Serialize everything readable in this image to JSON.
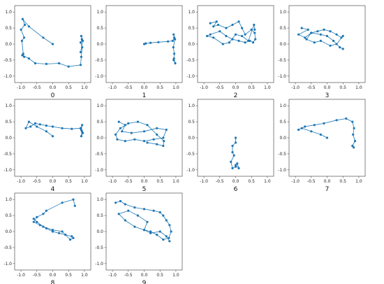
{
  "chart_data": {
    "type": "line",
    "marker_color": "#1f77b4",
    "xlim": [
      -1.2,
      1.2
    ],
    "ylim": [
      -1.2,
      1.2
    ],
    "xticks": [
      "-1.0",
      "-0.5",
      "0.0",
      "0.5",
      "1.0"
    ],
    "yticks": [
      "1.0",
      "0.5",
      "0.0",
      "-0.5",
      "-1.0"
    ],
    "grid": false,
    "panels": [
      {
        "title": "0",
        "x": [
          0.0,
          -0.3,
          -0.75,
          -0.95,
          -0.88,
          -1.0,
          -0.9,
          -0.97,
          -0.93,
          -0.9,
          -0.96,
          -0.75,
          -0.55,
          -0.2,
          0.2,
          0.5,
          0.88,
          0.9,
          0.93,
          0.88,
          0.92,
          0.9,
          0.95,
          0.88
        ],
        "y": [
          0.0,
          0.2,
          0.55,
          0.78,
          0.6,
          0.45,
          0.2,
          0.1,
          -0.3,
          -0.4,
          -0.35,
          -0.45,
          -0.6,
          -0.62,
          -0.6,
          -0.7,
          -0.65,
          -0.4,
          -0.1,
          0.05,
          0.15,
          0.25,
          0.1,
          -0.25
        ]
      },
      {
        "title": "1",
        "x": [
          0.0,
          0.05,
          0.2,
          0.45,
          0.75,
          0.9,
          0.95,
          0.93,
          0.97,
          0.92,
          0.95,
          0.93,
          0.98,
          0.94
        ],
        "y": [
          0.0,
          0.02,
          0.04,
          0.06,
          0.08,
          0.1,
          0.2,
          0.3,
          0.15,
          -0.1,
          -0.3,
          -0.5,
          -0.6,
          -0.45
        ]
      },
      {
        "title": "2",
        "x": [
          -0.8,
          -0.6,
          -0.7,
          -0.55,
          -0.3,
          -0.1,
          0.1,
          0.2,
          0.3,
          0.5,
          0.6,
          0.62,
          0.55,
          0.45,
          0.3,
          0.1,
          -0.1,
          -0.3,
          -0.5,
          -0.8,
          -0.9,
          -0.7,
          -0.4,
          -0.2,
          0.0,
          0.2,
          0.4,
          0.58,
          0.6
        ],
        "y": [
          0.65,
          0.7,
          0.55,
          0.6,
          0.5,
          0.6,
          0.7,
          0.5,
          0.3,
          0.45,
          0.35,
          0.15,
          0.05,
          0.1,
          0.05,
          0.1,
          0.15,
          0.25,
          0.4,
          0.3,
          0.25,
          0.2,
          0.0,
          0.05,
          0.3,
          0.25,
          0.1,
          0.6,
          0.45
        ]
      },
      {
        "title": "3",
        "x": [
          -0.8,
          -0.6,
          -0.9,
          -0.7,
          -0.5,
          -0.3,
          -0.1,
          0.1,
          0.3,
          0.45,
          0.5,
          0.3,
          0.1,
          -0.2,
          -0.4,
          -0.65,
          -0.5,
          -0.2,
          0.0,
          0.2,
          0.4,
          0.5
        ],
        "y": [
          0.5,
          0.45,
          0.3,
          0.2,
          0.35,
          0.4,
          0.45,
          0.4,
          0.3,
          0.2,
          0.25,
          0.0,
          -0.05,
          0.1,
          0.05,
          0.15,
          0.35,
          0.3,
          0.25,
          0.1,
          -0.1,
          -0.15
        ]
      },
      {
        "title": "4",
        "x": [
          0.0,
          -0.2,
          -0.5,
          -0.75,
          -0.85,
          -0.7,
          -0.55,
          -0.4,
          -0.2,
          0.0,
          0.3,
          0.6,
          0.88,
          0.92,
          0.9,
          0.95,
          0.88,
          0.93,
          0.9
        ],
        "y": [
          0.05,
          0.2,
          0.35,
          0.5,
          0.3,
          0.35,
          0.45,
          0.42,
          0.38,
          0.35,
          0.3,
          0.28,
          0.3,
          0.2,
          0.05,
          0.15,
          0.3,
          0.4,
          0.25
        ]
      },
      {
        "title": "5",
        "x": [
          -0.8,
          -0.6,
          -0.7,
          -0.4,
          0.0,
          0.4,
          0.7,
          0.6,
          0.3,
          0.0,
          -0.3,
          -0.6,
          -0.85,
          -0.9,
          -0.75,
          -0.5,
          -0.2,
          0.1,
          0.4,
          0.62,
          0.6,
          0.4,
          0.1
        ],
        "y": [
          0.5,
          0.4,
          0.2,
          0.15,
          0.2,
          0.3,
          0.25,
          0.0,
          -0.05,
          -0.1,
          -0.05,
          -0.1,
          -0.05,
          0.1,
          0.3,
          0.45,
          0.5,
          0.4,
          0.1,
          -0.1,
          -0.25,
          -0.2,
          -0.15
        ]
      },
      {
        "title": "6",
        "x": [
          0.0,
          0.0,
          -0.1,
          -0.1,
          -0.05,
          -0.15,
          -0.1,
          0.0,
          0.05,
          0.1,
          0.0
        ],
        "y": [
          0.0,
          -0.15,
          -0.25,
          -0.45,
          -0.55,
          -0.75,
          -0.95,
          -0.9,
          -0.8,
          -0.95,
          -0.85
        ]
      },
      {
        "title": "7",
        "x": [
          0.0,
          -0.2,
          -0.5,
          -0.8,
          -0.9,
          -0.7,
          -0.4,
          -0.1,
          0.3,
          0.6,
          0.8,
          0.85,
          0.82,
          0.88,
          0.8,
          0.84
        ],
        "y": [
          0.0,
          0.1,
          0.2,
          0.3,
          0.25,
          0.35,
          0.4,
          0.45,
          0.55,
          0.6,
          0.5,
          0.3,
          0.1,
          -0.1,
          -0.25,
          -0.3
        ]
      },
      {
        "title": "8",
        "x": [
          0.7,
          0.65,
          0.3,
          -0.2,
          -0.3,
          -0.5,
          -0.6,
          -0.4,
          -0.2,
          0.0,
          0.2,
          0.4,
          0.6,
          0.65,
          0.55,
          0.3,
          0.0,
          -0.3,
          -0.5,
          -0.6
        ],
        "y": [
          0.8,
          1.0,
          0.9,
          0.65,
          0.55,
          0.45,
          0.3,
          0.2,
          0.1,
          0.0,
          -0.05,
          -0.1,
          -0.15,
          -0.2,
          -0.25,
          0.0,
          0.05,
          0.15,
          0.3,
          0.4
        ]
      },
      {
        "title": "9",
        "x": [
          -0.9,
          -0.75,
          -0.6,
          -0.3,
          0.0,
          0.3,
          0.5,
          0.6,
          0.7,
          0.8,
          0.85,
          0.78,
          0.6,
          0.4,
          0.2,
          0.0,
          -0.3,
          -0.6,
          -0.8,
          -0.5,
          -0.2,
          0.1,
          0.0,
          0.2,
          0.5,
          0.7,
          0.8
        ],
        "y": [
          0.9,
          0.95,
          0.85,
          0.75,
          0.7,
          0.65,
          0.6,
          0.5,
          0.35,
          0.2,
          0.0,
          -0.2,
          -0.25,
          -0.1,
          0.0,
          0.05,
          0.15,
          0.35,
          0.55,
          0.65,
          0.5,
          0.3,
          0.05,
          -0.05,
          0.0,
          -0.15,
          -0.3
        ]
      }
    ]
  }
}
